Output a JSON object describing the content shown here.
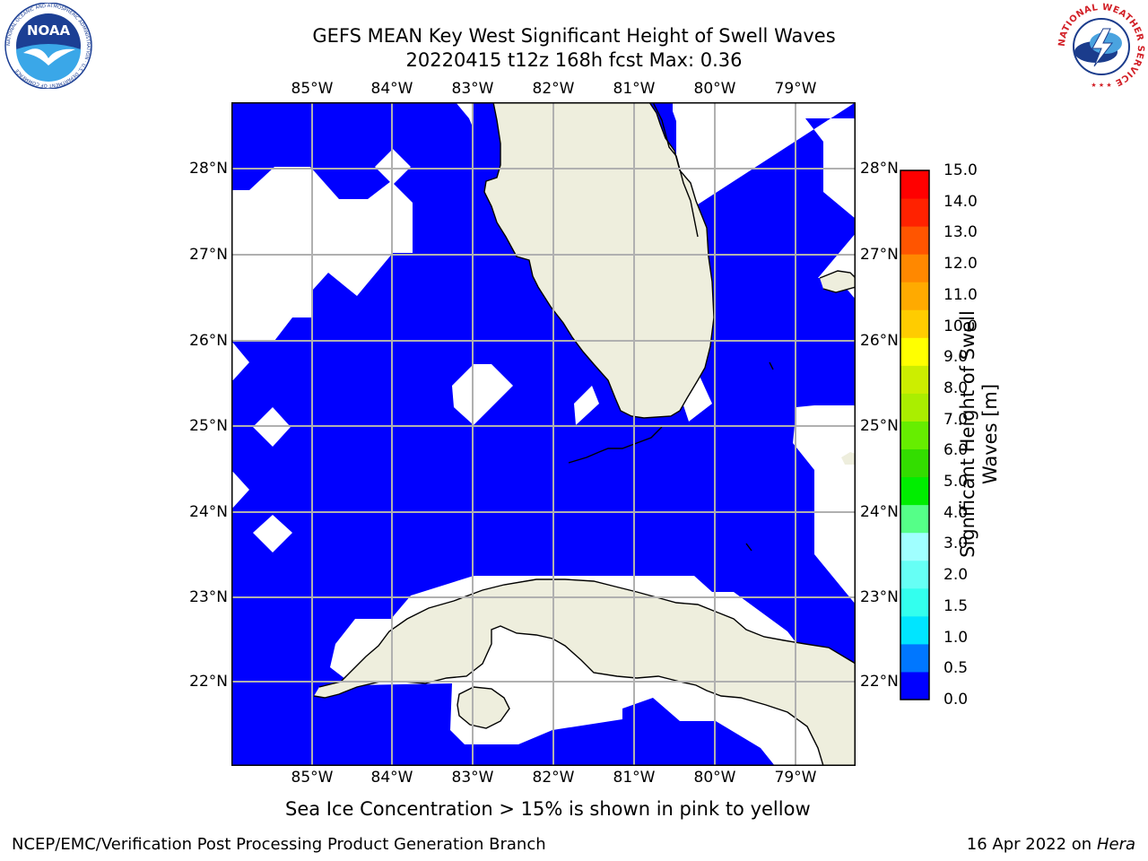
{
  "title": {
    "line1": "GEFS MEAN Key West Significant Height of Swell Waves",
    "line2": "20220415 t12z 168h fcst   Max: 0.36"
  },
  "map": {
    "lon_labels": [
      "85°W",
      "84°W",
      "83°W",
      "82°W",
      "81°W",
      "80°W",
      "79°W"
    ],
    "lat_labels": [
      "28°N",
      "27°N",
      "26°N",
      "25°N",
      "24°N",
      "23°N",
      "22°N"
    ],
    "ocean_color": "#0000ff",
    "land_color": "#eeeedd",
    "gap_color": "#ffffff",
    "grid_color": "#b0b0b0"
  },
  "colorbar": {
    "label": "Significant Height of Swell Waves [m]",
    "ticks": [
      "15.0",
      "14.0",
      "13.0",
      "12.0",
      "11.0",
      "10.0",
      "9.0",
      "8.0",
      "7.0",
      "6.0",
      "5.0",
      "4.0",
      "3.0",
      "2.0",
      "1.5",
      "1.0",
      "0.5",
      "0.0"
    ],
    "colors_bottom_to_top": [
      "#0000ff",
      "#0077ff",
      "#00e5ff",
      "#33ffee",
      "#66fff5",
      "#a0ffff",
      "#55ff88",
      "#00ee00",
      "#33dd00",
      "#66ee00",
      "#aaee00",
      "#ccee00",
      "#ffff00",
      "#ffcc00",
      "#ffaa00",
      "#ff8800",
      "#ff5500",
      "#ff2200",
      "#ff0000"
    ]
  },
  "subtitle": "Sea Ice Concentration > 15% is shown in pink to yellow",
  "footer": {
    "left": "NCEP/EMC/Verification Post Processing Product Generation Branch",
    "date": "16 Apr 2022 on ",
    "machine": "Hera"
  },
  "logos": {
    "noaa_text": "NOAA",
    "noaa_ring": "NATIONAL OCEANIC AND ATMOSPHERIC ADMINISTRATION · U.S. DEPARTMENT OF COMMERCE",
    "nws_ring": "NATIONAL WEATHER SERVICE"
  }
}
